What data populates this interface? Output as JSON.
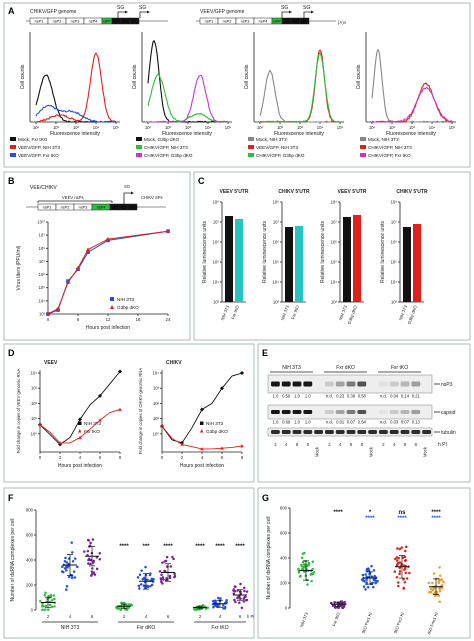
{
  "colors": {
    "black": "#111111",
    "red": "#e0201b",
    "blue": "#1f4fe0",
    "green": "#2bbf3a",
    "magenta": "#cc33cc",
    "purple": "#7a1f9c",
    "cyan": "#27c4c4",
    "grey": "#888888",
    "orange": "#f39a2b"
  },
  "panelA": {
    "label": "A",
    "genome_chikv": {
      "title": "CHIKV/GFP genome",
      "genes": [
        "nsP1",
        "nsP2",
        "nsP3",
        "nsP4",
        "GFP",
        "C",
        "E2",
        "E1"
      ],
      "sg": "SG"
    },
    "genome_veev": {
      "title": "VEEV/GFP genome",
      "genes": [
        "nsP1",
        "nsP2",
        "nsP3",
        "nsP4",
        "GFP",
        "C",
        "E2",
        "E1"
      ],
      "sg": "SG",
      "polyA": "(A)n"
    },
    "ylabel": "Cell counts",
    "xlabel": "Fluorescence intensity",
    "xticks": [
      "10¹",
      "10²",
      "10³",
      "10⁴",
      "10⁵"
    ],
    "legends": [
      [
        "Mock, Fxr tKO",
        "VEEV/GFP, NIH 3T3",
        "VEEV/GFP, Fxr tKO"
      ],
      [
        "Mock, G3bp dKO",
        "CHIKV/GFP, NIH 3T3",
        "CHIKV/GFP, G3bp dKO"
      ],
      [
        "Mock, NIH 3T3",
        "VEEV/GFP, NIH 3T3",
        "CHIKV/GFP, G3bp dKO"
      ],
      [
        "Mock, NIH 3T3",
        "CHIKV/GFP, NIH 3T3",
        "CHIKV/GFP, Fxr tKO"
      ]
    ]
  },
  "panelB": {
    "label": "B",
    "title": "VEE/CHIKV",
    "genome": {
      "top": "VEEV nsPs",
      "sg": "SG",
      "right": "CHIKV SPs",
      "genes": [
        "nsP1",
        "nsP2",
        "nsP3",
        "nsP4",
        "C",
        "E2",
        "E1"
      ]
    },
    "ylabel": "Virus titers (PFU/ml)",
    "xlabel": "Hours post infection",
    "yticks": [
      "10¹⁰",
      "10⁹",
      "10⁸",
      "10⁷",
      "10⁶",
      "10⁵",
      "10⁴",
      "10³"
    ],
    "xticks": [
      "0",
      "6",
      "12",
      "18",
      "24"
    ],
    "legend": [
      "NIH 3T3",
      "G3bp dKO"
    ]
  },
  "panelC": {
    "label": "C",
    "titles": [
      "VEEV 5'UTR",
      "CHIKV 5'UTR",
      "VEEV 5'UTR",
      "CHIKV 5'UTR"
    ],
    "ylabel": "Relative luminescence units",
    "yticks": [
      "10⁸",
      "10⁷",
      "10⁶",
      "10⁵",
      "10⁴",
      "10³"
    ],
    "categories": [
      [
        "NIH 3T3",
        "Fxr tKO"
      ],
      [
        "NIH 3T3",
        "Fxr tKO"
      ],
      [
        "NIH 3T3",
        "G3bp dKO"
      ],
      [
        "NIH 3T3",
        "G3bp dKO"
      ]
    ]
  },
  "panelD": {
    "label": "D",
    "titles": [
      "VEEV",
      "CHIKV"
    ],
    "ylabels": [
      "Fold change in copies of VEEV genomic RNA",
      "Fold change in copies of CHIKV genomic RNA"
    ],
    "xlabel": "Hours post infection",
    "yticks": [
      "10⁴",
      "10³",
      "10²",
      "10¹",
      "10⁰"
    ],
    "xticks": [
      "0",
      "2",
      "4",
      "6",
      "8"
    ],
    "legends": [
      [
        "NIH 3T3",
        "Fxr tKO"
      ],
      [
        "NIH 3T3",
        "G3bp dKO"
      ]
    ]
  },
  "panelE": {
    "label": "E",
    "groups": [
      "NIH 3T3",
      "Fxr dKO",
      "Fxr tKO"
    ],
    "lanes": [
      "2",
      "4",
      "6",
      "8",
      "Mock",
      "2",
      "4",
      "6",
      "8",
      "Mock",
      "2",
      "4",
      "6",
      "8",
      "Mock"
    ],
    "hpi": "h PI",
    "bands": [
      "nsP3",
      "capsid",
      "tubulin"
    ],
    "nsp3_vals": [
      "1.0",
      "0.50",
      "1.0",
      "1.0",
      "n.d.",
      "0.23",
      "0.38",
      "0.58",
      "n.d.",
      "0.04",
      "0.14",
      "0.21"
    ],
    "capsid_vals": [
      "1.0",
      "0.69",
      "1.0",
      "1.0",
      "n.d.",
      "0.01",
      "0.07",
      "0.54",
      "n.d.",
      "0.03",
      "0.07",
      "0.13"
    ]
  },
  "panelF": {
    "label": "F",
    "ylabel": "Number of dsRNA complexes per cell",
    "yticks": [
      "800",
      "600",
      "400",
      "200",
      "0"
    ],
    "xticks": [
      "2",
      "4",
      "6",
      "2",
      "4",
      "6",
      "2",
      "4",
      "6"
    ],
    "hpi": "h PI",
    "groups": [
      "NIH 3T3",
      "Fxr dKO",
      "Fxr tKO"
    ],
    "stars": [
      "****",
      "***",
      "****",
      "****",
      "****",
      "****"
    ]
  },
  "panelG": {
    "label": "G",
    "ylabel": "Number of dsRNA complexes per cell",
    "yticks": [
      "800",
      "600",
      "400",
      "200",
      "0"
    ],
    "categories": [
      "NIH 3T3",
      "Fxr tKO",
      "tKO Fxr1 KI",
      "tKO Fxr2 KI",
      "tKO Fmr1 KI"
    ],
    "stars_black": [
      "****",
      "*",
      "ns",
      "****"
    ],
    "stars_blue": [
      "****",
      "****",
      "****"
    ]
  }
}
